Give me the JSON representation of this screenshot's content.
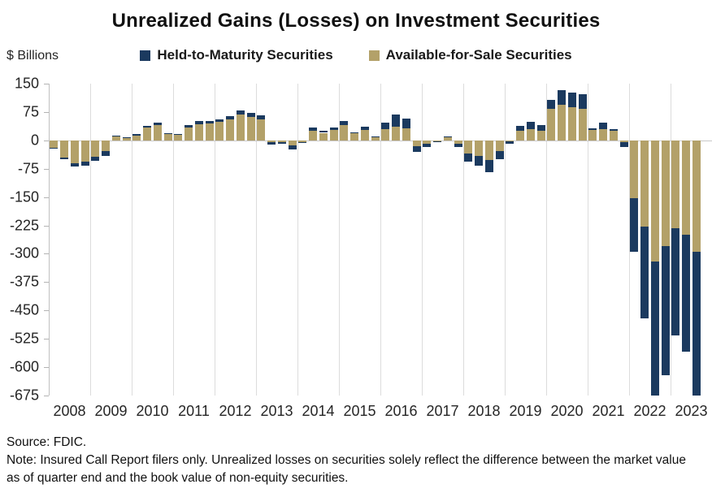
{
  "title": "Unrealized Gains (Losses) on Investment Securities",
  "axis_unit_label": "$ Billions",
  "legend": [
    {
      "label": "Held-to-Maturity Securities",
      "color": "#1b3a5f"
    },
    {
      "label": "Available-for-Sale Securities",
      "color": "#b3a169"
    }
  ],
  "footer": {
    "source": "Source: FDIC.",
    "note": "Note: Insured Call Report filers only. Unrealized losses on securities solely reflect the difference between the market value as of quarter end and the book value of non-equity securities."
  },
  "chart_data": {
    "type": "bar",
    "stacked": true,
    "title": "Unrealized Gains (Losses) on Investment Securities",
    "ylabel": "$ Billions",
    "xlabel": "",
    "ylim": [
      -675,
      150
    ],
    "yticks": [
      150,
      75,
      0,
      -75,
      -150,
      -225,
      -300,
      -375,
      -450,
      -525,
      -600,
      -675
    ],
    "grid": "vertical-year-gridlines",
    "legend_position": "top-center",
    "clip_to_ylim": true,
    "stack_base_series": "Available-for-Sale Securities",
    "years": [
      "2008",
      "2009",
      "2010",
      "2011",
      "2012",
      "2013",
      "2014",
      "2015",
      "2016",
      "2017",
      "2018",
      "2019",
      "2020",
      "2021",
      "2022",
      "2023"
    ],
    "categories": [
      "2008 Q1",
      "2008 Q2",
      "2008 Q3",
      "2008 Q4",
      "2009 Q1",
      "2009 Q2",
      "2009 Q3",
      "2009 Q4",
      "2010 Q1",
      "2010 Q2",
      "2010 Q3",
      "2010 Q4",
      "2011 Q1",
      "2011 Q2",
      "2011 Q3",
      "2011 Q4",
      "2012 Q1",
      "2012 Q2",
      "2012 Q3",
      "2012 Q4",
      "2013 Q1",
      "2013 Q2",
      "2013 Q3",
      "2013 Q4",
      "2014 Q1",
      "2014 Q2",
      "2014 Q3",
      "2014 Q4",
      "2015 Q1",
      "2015 Q2",
      "2015 Q3",
      "2015 Q4",
      "2016 Q1",
      "2016 Q2",
      "2016 Q3",
      "2016 Q4",
      "2017 Q1",
      "2017 Q2",
      "2017 Q3",
      "2017 Q4",
      "2018 Q1",
      "2018 Q2",
      "2018 Q3",
      "2018 Q4",
      "2019 Q1",
      "2019 Q2",
      "2019 Q3",
      "2019 Q4",
      "2020 Q1",
      "2020 Q2",
      "2020 Q3",
      "2020 Q4",
      "2021 Q1",
      "2021 Q2",
      "2021 Q3",
      "2021 Q4",
      "2022 Q1",
      "2022 Q2",
      "2022 Q3",
      "2022 Q4",
      "2023 Q1",
      "2023 Q2",
      "2023 Q3"
    ],
    "series": [
      {
        "name": "Held-to-Maturity Securities",
        "color": "#1b3a5f",
        "values": [
          -2,
          -3,
          -9,
          -10,
          -11,
          -13,
          2,
          4,
          4,
          5,
          7,
          3,
          2,
          7,
          8,
          7,
          7,
          8,
          12,
          11,
          10,
          -6,
          -5,
          -11,
          -2,
          8,
          5,
          7,
          12,
          4,
          9,
          3,
          17,
          32,
          26,
          -14,
          -9,
          -2,
          2,
          -7,
          -22,
          -25,
          -33,
          -21,
          -6,
          12,
          18,
          15,
          23,
          39,
          39,
          38,
          3,
          17,
          4,
          -14,
          -141,
          -242,
          -369,
          -341,
          -284,
          -310,
          -390
        ]
      },
      {
        "name": "Available-for-Sale Securities",
        "color": "#b3a169",
        "values": [
          -19,
          -46,
          -60,
          -56,
          -43,
          -28,
          11,
          5,
          13,
          34,
          40,
          16,
          15,
          33,
          43,
          44,
          48,
          55,
          68,
          62,
          56,
          -5,
          -5,
          -13,
          -4,
          26,
          20,
          28,
          40,
          18,
          28,
          8,
          30,
          37,
          32,
          -16,
          -9,
          -2,
          9,
          -10,
          -34,
          -41,
          -51,
          -28,
          -3,
          26,
          30,
          26,
          84,
          94,
          88,
          84,
          28,
          30,
          26,
          -4,
          -153,
          -228,
          -321,
          -280,
          -232,
          -249,
          -294
        ]
      }
    ]
  }
}
